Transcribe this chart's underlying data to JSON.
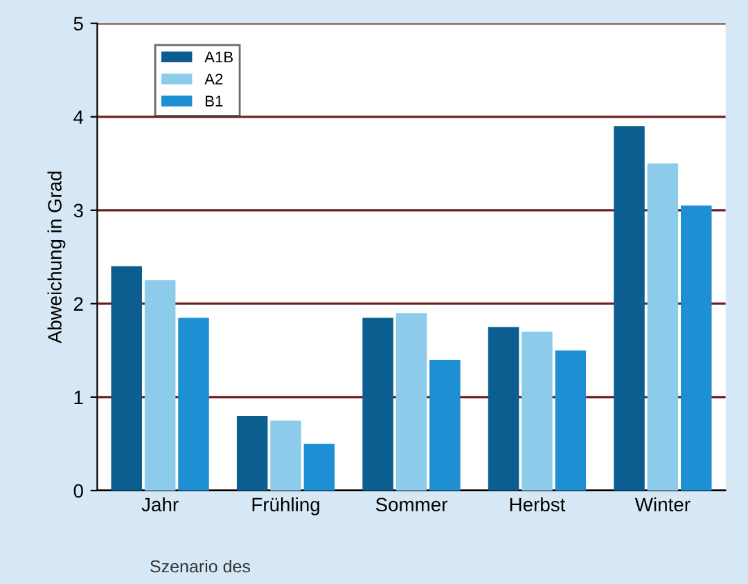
{
  "chart_data": {
    "type": "bar",
    "ylabel": "Abweichung in Grad",
    "categories": [
      "Jahr",
      "Frühling",
      "Sommer",
      "Herbst",
      "Winter"
    ],
    "series": [
      {
        "name": "A1B",
        "color": "#0b5e8f",
        "values": [
          2.4,
          0.8,
          1.85,
          1.75,
          3.9
        ]
      },
      {
        "name": "A2",
        "color": "#8ccbea",
        "values": [
          2.25,
          0.75,
          1.9,
          1.7,
          3.5
        ]
      },
      {
        "name": "B1",
        "color": "#1e8fd2",
        "values": [
          1.85,
          0.5,
          1.4,
          1.5,
          3.05
        ]
      }
    ],
    "ylim": [
      0,
      5
    ],
    "yticks": [
      0,
      1,
      2,
      3,
      4,
      5
    ],
    "grid": "y",
    "legend": "top left",
    "annotations": [
      "Szenario des"
    ]
  }
}
